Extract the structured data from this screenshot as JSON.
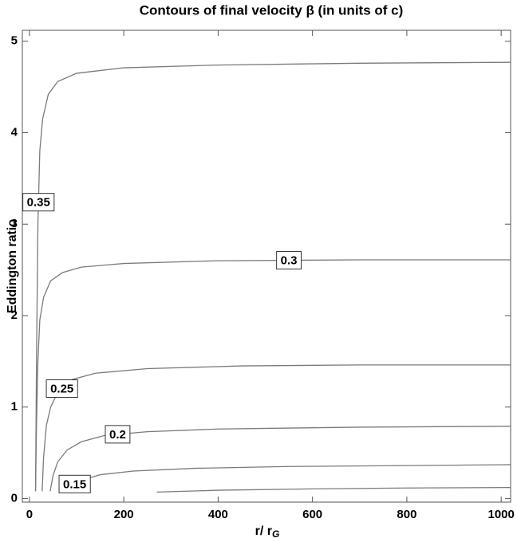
{
  "chart_data": {
    "type": "contour",
    "title": "Contours of final velocity β (in units of c)",
    "x_label": "r/ r",
    "x_label_sub": "G",
    "y_label": "Eddington ratio",
    "xlim": [
      -15,
      1020
    ],
    "ylim": [
      -0.04,
      5.12
    ],
    "xticks": [
      0,
      200,
      400,
      600,
      800,
      1000
    ],
    "yticks": [
      0,
      1,
      2,
      3,
      4,
      5
    ],
    "color": "#7a7a7a",
    "series": [
      {
        "level": 0.35,
        "x": [
          13,
          15,
          18,
          22,
          28,
          40,
          60,
          100,
          200,
          400,
          700,
          1020
        ],
        "values": [
          0.08,
          1.5,
          3.0,
          3.8,
          4.15,
          4.42,
          4.56,
          4.65,
          4.71,
          4.74,
          4.76,
          4.77
        ]
      },
      {
        "level": 0.3,
        "x": [
          13,
          15,
          18,
          22,
          30,
          45,
          70,
          110,
          200,
          400,
          700,
          1020
        ],
        "values": [
          0.08,
          0.8,
          1.5,
          1.95,
          2.2,
          2.38,
          2.47,
          2.53,
          2.57,
          2.6,
          2.61,
          2.61
        ]
      },
      {
        "level": 0.25,
        "x": [
          27,
          30,
          36,
          45,
          60,
          90,
          140,
          250,
          450,
          700,
          1020
        ],
        "values": [
          0.08,
          0.45,
          0.8,
          1.0,
          1.16,
          1.3,
          1.37,
          1.42,
          1.45,
          1.46,
          1.46
        ]
      },
      {
        "level": 0.2,
        "x": [
          44,
          50,
          60,
          80,
          110,
          160,
          250,
          400,
          700,
          1020
        ],
        "values": [
          0.08,
          0.25,
          0.4,
          0.53,
          0.62,
          0.69,
          0.73,
          0.76,
          0.78,
          0.79
        ]
      },
      {
        "level": 0.15,
        "x": [
          80,
          90,
          110,
          150,
          220,
          350,
          550,
          800,
          1020
        ],
        "values": [
          0.08,
          0.14,
          0.2,
          0.26,
          0.3,
          0.33,
          0.35,
          0.36,
          0.37
        ]
      },
      {
        "level": null,
        "x": [
          270,
          400,
          600,
          800,
          1020
        ],
        "values": [
          0.07,
          0.09,
          0.105,
          0.115,
          0.12
        ]
      }
    ]
  }
}
